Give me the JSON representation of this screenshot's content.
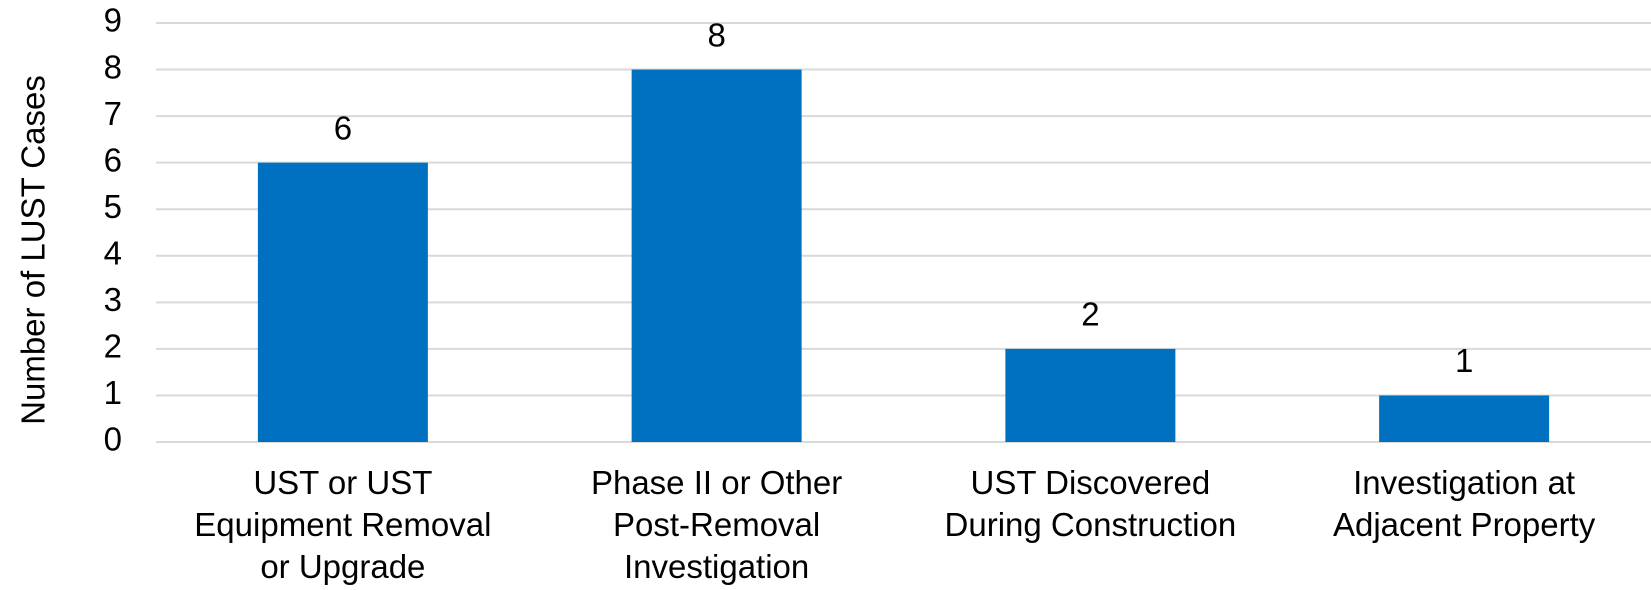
{
  "chart_data": {
    "type": "bar",
    "y_axis_label": "Number of LUST Cases",
    "categories": [
      [
        "UST or UST",
        "Equipment Removal",
        "or Upgrade"
      ],
      [
        "Phase II or Other",
        "Post-Removal",
        "Investigation"
      ],
      [
        "UST Discovered",
        "During Construction"
      ],
      [
        "Investigation at",
        "Adjacent Property"
      ]
    ],
    "values": [
      6,
      8,
      2,
      1
    ],
    "color": "#0070c0",
    "ylim": [
      0,
      9
    ],
    "yticks": [
      0,
      1,
      2,
      3,
      4,
      5,
      6,
      7,
      8,
      9
    ],
    "grid": true
  }
}
